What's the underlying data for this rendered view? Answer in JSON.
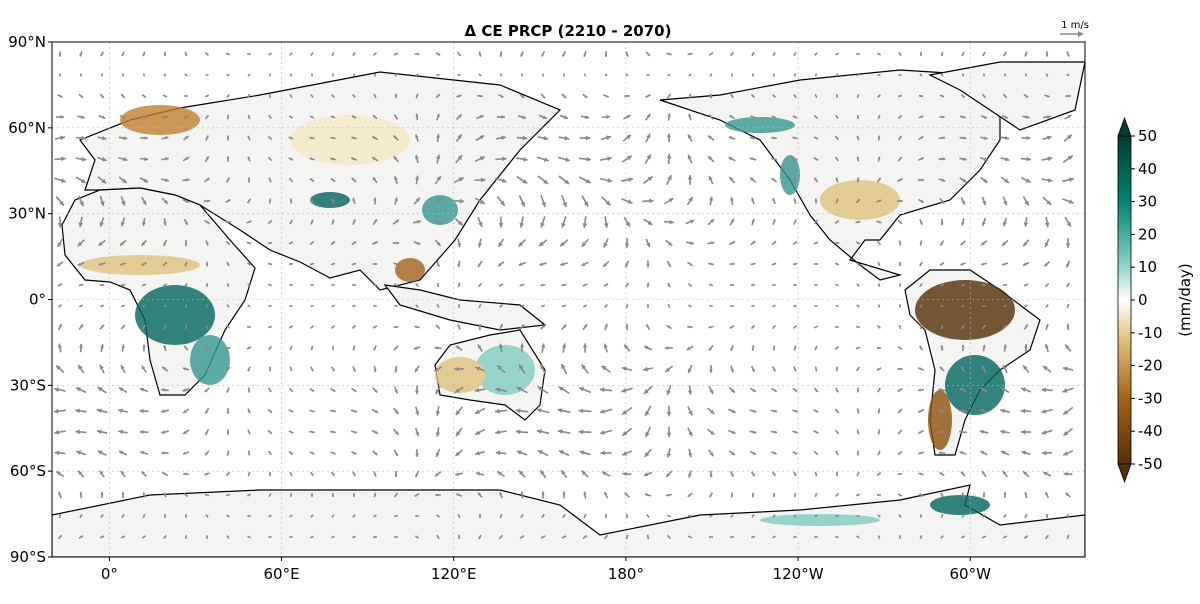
{
  "map": {
    "title": "Δ CE PRCP (2210 - 2070)",
    "quiver_key": "1 m/s",
    "lonlim": [
      -20,
      340
    ],
    "latlim": [
      -90,
      90
    ],
    "lat_ticks": [
      {
        "value": 90,
        "label": "90°N"
      },
      {
        "value": 60,
        "label": "60°N"
      },
      {
        "value": 30,
        "label": "30°N"
      },
      {
        "value": 0,
        "label": "0°"
      },
      {
        "value": -30,
        "label": "30°S"
      },
      {
        "value": -60,
        "label": "60°S"
      },
      {
        "value": -90,
        "label": "90°S"
      }
    ],
    "lon_ticks": [
      {
        "value": 0,
        "label": "0°"
      },
      {
        "value": 60,
        "label": "60°E"
      },
      {
        "value": 120,
        "label": "120°E"
      },
      {
        "value": 180,
        "label": "180°"
      },
      {
        "value": 240,
        "label": "120°W"
      },
      {
        "value": 300,
        "label": "60°W"
      }
    ],
    "colorbar": {
      "label": "(mm/day)",
      "lim": [
        -50,
        50
      ],
      "ticks": [
        50,
        40,
        30,
        20,
        10,
        0,
        -10,
        -20,
        -30,
        -40,
        -50
      ]
    }
  }
}
